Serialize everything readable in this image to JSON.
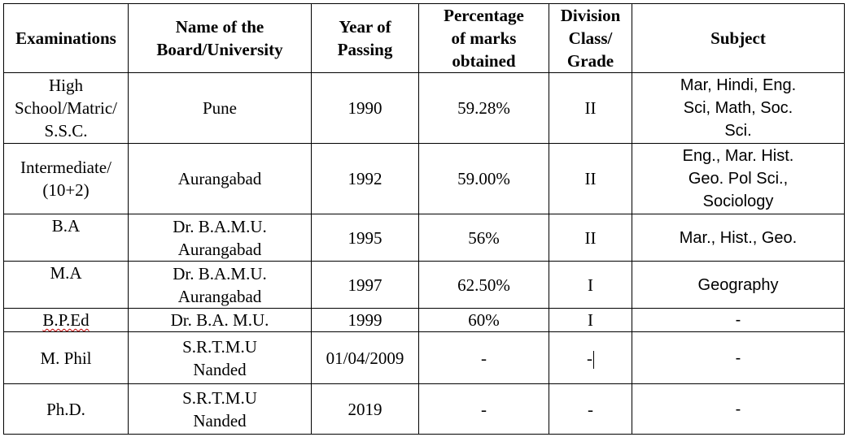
{
  "headers": {
    "examinations": "Examinations",
    "board_line1": "Name  of the",
    "board_line2": "Board/University",
    "year_line1": "Year of",
    "year_line2": "Passing",
    "pct_line1": "Percentage",
    "pct_line2": "of marks",
    "pct_line3": "obtained",
    "div_line1": "Division",
    "div_line2": "Class/",
    "div_line3": "Grade",
    "subject": "Subject"
  },
  "rows": [
    {
      "exam": [
        "High",
        "School/Matric/",
        "S.S.C."
      ],
      "board": [
        "Pune"
      ],
      "year": "1990",
      "percentage": "59.28%",
      "division": "II",
      "subject": [
        "Mar, Hindi, Eng.",
        "Sci, Math, Soc.",
        "Sci."
      ]
    },
    {
      "exam": [
        "Intermediate/",
        "(10+2)"
      ],
      "board": [
        "Aurangabad"
      ],
      "year": "1992",
      "percentage": "59.00%",
      "division": "II",
      "subject": [
        "Eng., Mar. Hist.",
        "Geo. Pol Sci.,",
        "Sociology"
      ]
    },
    {
      "exam": [
        "B.A"
      ],
      "board": [
        "Dr. B.A.M.U.",
        "Aurangabad"
      ],
      "year": "1995",
      "percentage": "56%",
      "division": "II",
      "subject": [
        "Mar., Hist., Geo."
      ]
    },
    {
      "exam": [
        "M.A"
      ],
      "board": [
        "Dr. B.A.M.U.",
        "Aurangabad"
      ],
      "year": "1997",
      "percentage": "62.50%",
      "division": "I",
      "subject": [
        "Geography"
      ]
    },
    {
      "exam": [
        "B.P.Ed"
      ],
      "board": [
        "Dr. B.A. M.U."
      ],
      "year": "1999",
      "percentage": "60%",
      "division": "I",
      "subject": [
        "-"
      ]
    },
    {
      "exam": [
        "M. Phil"
      ],
      "board": [
        "S.R.T.M.U",
        "Nanded"
      ],
      "year": "01/04/2009",
      "percentage": "-",
      "division": "-",
      "subject": [
        "-"
      ]
    },
    {
      "exam": [
        "Ph.D."
      ],
      "board": [
        "S.R.T.M.U",
        "Nanded"
      ],
      "year": "2019",
      "percentage": "-",
      "division": "-",
      "subject": [
        "-"
      ]
    }
  ]
}
